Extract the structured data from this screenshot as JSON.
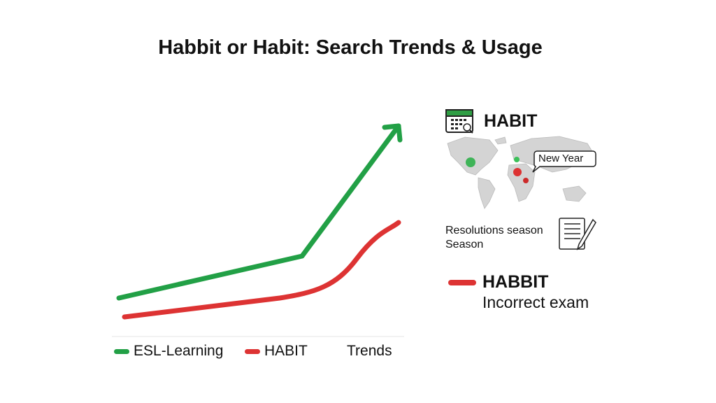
{
  "title": "Habbit or Habit: Search Trends & Usage",
  "chart_data": {
    "type": "line",
    "title": "Habbit or Habit: Search Trends & Usage",
    "x": [
      0,
      1,
      2
    ],
    "series": [
      {
        "name": "ESL-Learning",
        "color": "#22a046",
        "values": [
          18,
          38,
          100
        ]
      },
      {
        "name": "HABIT",
        "color": "#dd3333",
        "values": [
          9,
          20,
          54
        ]
      }
    ],
    "ylim": [
      0,
      110
    ],
    "grid": false,
    "legend_position": "bottom",
    "legend_extra": "Trends"
  },
  "panel": {
    "heading": "HABIT",
    "map_callout": "New Year",
    "note_line1": "Resolutions season",
    "note_line2": "Season",
    "wrong_word": "HABBIT",
    "wrong_desc": "Incorrect exam",
    "icons": [
      "calendar-search-icon",
      "world-map",
      "notebook-pencil-icon"
    ]
  }
}
